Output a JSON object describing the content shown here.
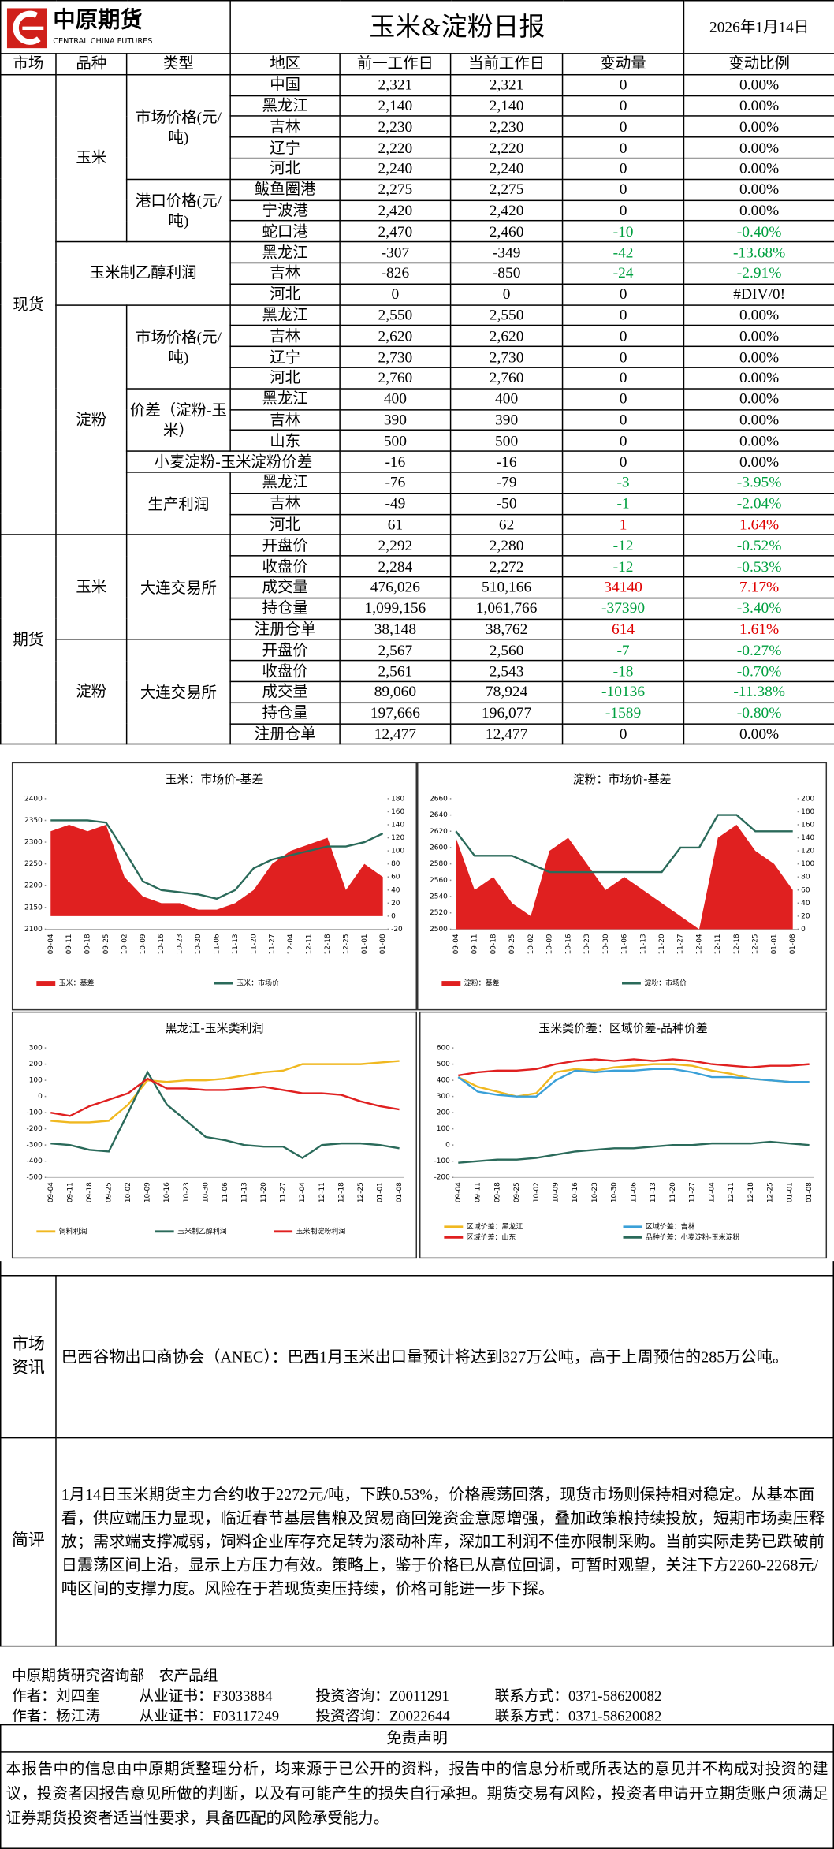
{
  "header": {
    "logo_cn": "中原期货",
    "logo_en": "CENTRAL CHINA FUTURES",
    "title": "玉米&淀粉日报",
    "date": "2026年1月14日"
  },
  "table": {
    "columns": [
      "市场",
      "品种",
      "类型",
      "地区",
      "前一工作日",
      "当前工作日",
      "变动量",
      "变动比例"
    ],
    "sections": [
      {
        "market": "现货",
        "varieties": [
          {
            "name": "玉米",
            "types": [
              {
                "name": "市场价格(元/吨)",
                "rows": [
                  [
                    "中国",
                    "2,321",
                    "2,321",
                    "0",
                    "0.00%"
                  ],
                  [
                    "黑龙江",
                    "2,140",
                    "2,140",
                    "0",
                    "0.00%"
                  ],
                  [
                    "吉林",
                    "2,230",
                    "2,230",
                    "0",
                    "0.00%"
                  ],
                  [
                    "辽宁",
                    "2,220",
                    "2,220",
                    "0",
                    "0.00%"
                  ],
                  [
                    "河北",
                    "2,240",
                    "2,240",
                    "0",
                    "0.00%"
                  ]
                ]
              },
              {
                "name": "港口价格(元/吨)",
                "rows": [
                  [
                    "鲅鱼圈港",
                    "2,275",
                    "2,275",
                    "0",
                    "0.00%"
                  ],
                  [
                    "宁波港",
                    "2,420",
                    "2,420",
                    "0",
                    "0.00%"
                  ],
                  [
                    "蛇口港",
                    "2,470",
                    "2,460",
                    "-10",
                    "-0.40%"
                  ]
                ]
              }
            ]
          },
          {
            "name": "玉米制乙醇利润",
            "types": [
              {
                "rows": [
                  [
                    "黑龙江",
                    "-307",
                    "-349",
                    "-42",
                    "-13.68%"
                  ],
                  [
                    "吉林",
                    "-826",
                    "-850",
                    "-24",
                    "-2.91%"
                  ],
                  [
                    "河北",
                    "0",
                    "0",
                    "0",
                    "#DIV/0!"
                  ]
                ]
              }
            ]
          },
          {
            "name": "淀粉",
            "types": [
              {
                "name": "市场价格(元/吨)",
                "rows": [
                  [
                    "黑龙江",
                    "2,550",
                    "2,550",
                    "0",
                    "0.00%"
                  ],
                  [
                    "吉林",
                    "2,620",
                    "2,620",
                    "0",
                    "0.00%"
                  ],
                  [
                    "辽宁",
                    "2,730",
                    "2,730",
                    "0",
                    "0.00%"
                  ],
                  [
                    "河北",
                    "2,760",
                    "2,760",
                    "0",
                    "0.00%"
                  ]
                ]
              },
              {
                "name": "价差（淀粉-玉米）",
                "rows": [
                  [
                    "黑龙江",
                    "400",
                    "400",
                    "0",
                    "0.00%"
                  ],
                  [
                    "吉林",
                    "390",
                    "390",
                    "0",
                    "0.00%"
                  ],
                  [
                    "山东",
                    "500",
                    "500",
                    "0",
                    "0.00%"
                  ]
                ]
              },
              {
                "name": "小麦淀粉-玉米淀粉价差",
                "rows": [
                  [
                    "-16",
                    "-16",
                    "0",
                    "0.00%"
                  ]
                ]
              },
              {
                "name": "生产利润",
                "rows": [
                  [
                    "黑龙江",
                    "-76",
                    "-79",
                    "-3",
                    "-3.95%"
                  ],
                  [
                    "吉林",
                    "-49",
                    "-50",
                    "-1",
                    "-2.04%"
                  ],
                  [
                    "河北",
                    "61",
                    "62",
                    "1",
                    "1.64%"
                  ]
                ]
              }
            ]
          }
        ]
      },
      {
        "market": "期货",
        "varieties": [
          {
            "name": "玉米",
            "types": [
              {
                "name": "大连交易所",
                "rows": [
                  [
                    "开盘价",
                    "2,292",
                    "2,280",
                    "-12",
                    "-0.52%"
                  ],
                  [
                    "收盘价",
                    "2,284",
                    "2,272",
                    "-12",
                    "-0.53%"
                  ],
                  [
                    "成交量",
                    "476,026",
                    "510,166",
                    "34140",
                    "7.17%"
                  ],
                  [
                    "持仓量",
                    "1,099,156",
                    "1,061,766",
                    "-37390",
                    "-3.40%"
                  ],
                  [
                    "注册仓单",
                    "38,148",
                    "38,762",
                    "614",
                    "1.61%"
                  ]
                ]
              }
            ]
          },
          {
            "name": "淀粉",
            "types": [
              {
                "name": "大连交易所",
                "rows": [
                  [
                    "开盘价",
                    "2,567",
                    "2,560",
                    "-7",
                    "-0.27%"
                  ],
                  [
                    "收盘价",
                    "2,561",
                    "2,543",
                    "-18",
                    "-0.70%"
                  ],
                  [
                    "成交量",
                    "89,060",
                    "78,924",
                    "-10136",
                    "-11.38%"
                  ],
                  [
                    "持仓量",
                    "197,666",
                    "196,077",
                    "-1589",
                    "-0.80%"
                  ],
                  [
                    "注册仓单",
                    "12,477",
                    "12,477",
                    "0",
                    "0.00%"
                  ]
                ]
              }
            ]
          }
        ]
      }
    ]
  },
  "chart_data": [
    {
      "type": "line",
      "title": "玉米：市场价-基差",
      "categories": [
        "09-04",
        "09-11",
        "09-18",
        "09-25",
        "10-02",
        "10-09",
        "10-16",
        "10-23",
        "10-30",
        "11-06",
        "11-13",
        "11-20",
        "11-27",
        "12-04",
        "12-11",
        "12-18",
        "12-25",
        "01-01",
        "01-08"
      ],
      "ylim": [
        2100,
        2400
      ],
      "yticks": [
        2100,
        2150,
        2200,
        2250,
        2300,
        2350,
        2400
      ],
      "y2lim": [
        -20,
        180
      ],
      "y2ticks": [
        -20,
        0,
        20,
        40,
        60,
        80,
        100,
        120,
        140,
        160,
        180
      ],
      "series": [
        {
          "name": "玉米：基差",
          "color": "#e02020",
          "style": "area",
          "axis": "y2",
          "values": [
            130,
            140,
            130,
            140,
            60,
            30,
            20,
            20,
            10,
            10,
            20,
            40,
            80,
            100,
            110,
            120,
            40,
            80,
            60
          ]
        },
        {
          "name": "玉米：市场价",
          "color": "#2a6a5a",
          "style": "line",
          "values": [
            2350,
            2350,
            2350,
            2345,
            2280,
            2210,
            2190,
            2185,
            2180,
            2170,
            2190,
            2240,
            2260,
            2270,
            2280,
            2290,
            2290,
            2300,
            2320
          ]
        }
      ]
    },
    {
      "type": "line",
      "title": "淀粉：市场价-基差",
      "categories": [
        "09-04",
        "09-11",
        "09-18",
        "09-25",
        "10-02",
        "10-09",
        "10-16",
        "10-23",
        "10-30",
        "11-06",
        "11-13",
        "11-20",
        "11-27",
        "12-04",
        "12-11",
        "12-18",
        "12-25",
        "01-01",
        "01-08"
      ],
      "ylim": [
        2500,
        2660
      ],
      "yticks": [
        2500,
        2520,
        2540,
        2560,
        2580,
        2600,
        2620,
        2640,
        2660
      ],
      "y2lim": [
        0,
        200
      ],
      "y2ticks": [
        0,
        20,
        40,
        60,
        80,
        100,
        120,
        140,
        160,
        180,
        200
      ],
      "series": [
        {
          "name": "淀粉：基差",
          "color": "#e02020",
          "style": "area",
          "axis": "y2",
          "values": [
            140,
            60,
            80,
            40,
            20,
            120,
            140,
            100,
            60,
            80,
            60,
            40,
            20,
            0,
            140,
            160,
            120,
            100,
            60
          ]
        },
        {
          "name": "淀粉：市场价",
          "color": "#2a6a5a",
          "style": "line",
          "values": [
            2620,
            2590,
            2590,
            2590,
            2580,
            2570,
            2570,
            2570,
            2570,
            2570,
            2570,
            2570,
            2600,
            2600,
            2640,
            2640,
            2620,
            2620,
            2620
          ]
        }
      ]
    },
    {
      "type": "line",
      "title": "黑龙江-玉米类利润",
      "categories": [
        "09-04",
        "09-11",
        "09-18",
        "09-25",
        "10-02",
        "10-09",
        "10-16",
        "10-23",
        "10-30",
        "11-06",
        "11-13",
        "11-20",
        "11-27",
        "12-04",
        "12-11",
        "12-18",
        "12-25",
        "01-01",
        "01-08"
      ],
      "ylim": [
        -500,
        300
      ],
      "yticks": [
        -500,
        -400,
        -300,
        -200,
        -100,
        0,
        100,
        200,
        300
      ],
      "series": [
        {
          "name": "饲料利润",
          "color": "#f0b820",
          "style": "line",
          "values": [
            -150,
            -160,
            -160,
            -150,
            -50,
            100,
            90,
            100,
            100,
            110,
            130,
            150,
            160,
            200,
            200,
            200,
            200,
            210,
            220
          ]
        },
        {
          "name": "玉米制乙醇利润",
          "color": "#2a6a5a",
          "style": "line",
          "values": [
            -290,
            -300,
            -330,
            -340,
            -100,
            150,
            -50,
            -150,
            -250,
            -270,
            -300,
            -310,
            -310,
            -380,
            -300,
            -290,
            -290,
            -300,
            -320
          ]
        },
        {
          "name": "玉米制淀粉利润",
          "color": "#e02020",
          "style": "line",
          "values": [
            -100,
            -120,
            -60,
            -20,
            20,
            110,
            50,
            50,
            40,
            40,
            50,
            60,
            40,
            20,
            20,
            10,
            -30,
            -60,
            -80
          ]
        }
      ]
    },
    {
      "type": "line",
      "title": "玉米类价差：区域价差-品种价差",
      "categories": [
        "09-04",
        "09-11",
        "09-18",
        "09-25",
        "10-02",
        "10-09",
        "10-16",
        "10-23",
        "10-30",
        "11-06",
        "11-13",
        "11-20",
        "11-27",
        "12-04",
        "12-11",
        "12-18",
        "12-25",
        "01-01",
        "01-08"
      ],
      "ylim": [
        -200,
        600
      ],
      "yticks": [
        -200,
        -100,
        0,
        100,
        200,
        300,
        400,
        500,
        600
      ],
      "series": [
        {
          "name": "区域价差：黑龙江",
          "color": "#f0b820",
          "style": "line",
          "values": [
            420,
            360,
            330,
            300,
            320,
            450,
            470,
            460,
            480,
            490,
            500,
            500,
            490,
            460,
            440,
            410,
            400,
            390,
            390
          ]
        },
        {
          "name": "区域价差：吉林",
          "color": "#3aa0d8",
          "style": "line",
          "values": [
            420,
            330,
            310,
            300,
            300,
            400,
            460,
            450,
            460,
            460,
            470,
            470,
            450,
            420,
            420,
            410,
            400,
            390,
            390
          ]
        },
        {
          "name": "区域价差：山东",
          "color": "#e02020",
          "style": "line",
          "values": [
            430,
            450,
            460,
            460,
            470,
            500,
            520,
            530,
            520,
            530,
            520,
            530,
            520,
            500,
            490,
            480,
            490,
            490,
            500
          ]
        },
        {
          "name": "品种价差：小麦淀粉-玉米淀粉",
          "color": "#2a6a5a",
          "style": "line",
          "values": [
            -110,
            -100,
            -90,
            -90,
            -80,
            -60,
            -40,
            -30,
            -20,
            -20,
            -10,
            0,
            0,
            10,
            10,
            10,
            20,
            10,
            0
          ]
        }
      ]
    }
  ],
  "news": {
    "label": "市场资讯",
    "text": "巴西谷物出口商协会（ANEC）：巴西1月玉米出口量预计将达到327万公吨，高于上周预估的285万公吨。"
  },
  "comment": {
    "label": "简评",
    "text": "1月14日玉米期货主力合约收于2272元/吨，下跌0.53%，价格震荡回落，现货市场则保持相对稳定。从基本面看，供应端压力显现，临近春节基层售粮及贸易商回笼资金意愿增强，叠加政策粮持续投放，短期市场卖压释放；需求端支撑减弱，饲料企业库存充足转为滚动补库，深加工利润不佳亦限制采购。当前实际走势已跌破前日震荡区间上沿，显示上方压力有效。策略上，鉴于价格已从高位回调，可暂时观望，关注下方2260-2268元/吨区间的支撑力度。风险在于若现货卖压持续，价格可能进一步下探。"
  },
  "footer": {
    "dept": "中原期货研究咨询部　农产品组",
    "authors": [
      [
        "作者：刘四奎",
        "从业证书：F3033884",
        "投资咨询：Z0011291",
        "联系方式：0371-58620082"
      ],
      [
        "作者：杨江涛",
        "从业证书：F03117249",
        "投资咨询：Z0022644",
        "联系方式：0371-58620082"
      ]
    ],
    "disclaimer_title": "免责声明",
    "disclaimer": "本报告中的信息由中原期货整理分析，均来源于已公开的资料，报告中的信息分析或所表达的意见并不构成对投资的建议，投资者因报告意见所做的判断，以及有可能产生的损失自行承担。期货交易有风险，投资者申请开立期货账户须满足证券期货投资者适当性要求，具备匹配的风险承受能力。"
  }
}
